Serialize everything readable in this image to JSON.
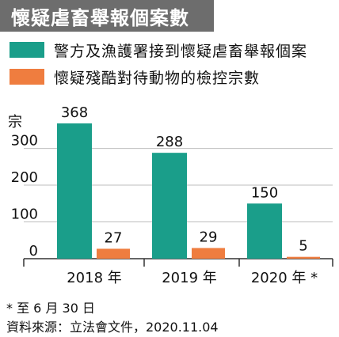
{
  "title": "懷疑虐畜舉報個案數",
  "legend": [
    {
      "label": "警方及漁護署接到懷疑虐畜舉報個案",
      "color": "#1a9e8a"
    },
    {
      "label": "懷疑殘酷對待動物的檢控宗數",
      "color": "#ef7d3f"
    }
  ],
  "unit": "宗",
  "footnote": "* 至 6 月 30 日",
  "source": "資料來源：立法會文件，2020.11.04",
  "chart_data": {
    "type": "bar",
    "categories": [
      "2018 年",
      "2019 年",
      "2020 年 *"
    ],
    "series": [
      {
        "name": "警方及漁護署接到懷疑虐畜舉報個案",
        "values": [
          368,
          288,
          150
        ],
        "color": "#1a9e8a"
      },
      {
        "name": "懷疑殘酷對待動物的檢控宗數",
        "values": [
          27,
          29,
          5
        ],
        "color": "#ef7d3f"
      }
    ],
    "yticks": [
      0,
      100,
      200,
      300
    ],
    "ylabel": "宗",
    "ylim": [
      0,
      368
    ],
    "grid": true,
    "legend_position": "top"
  }
}
